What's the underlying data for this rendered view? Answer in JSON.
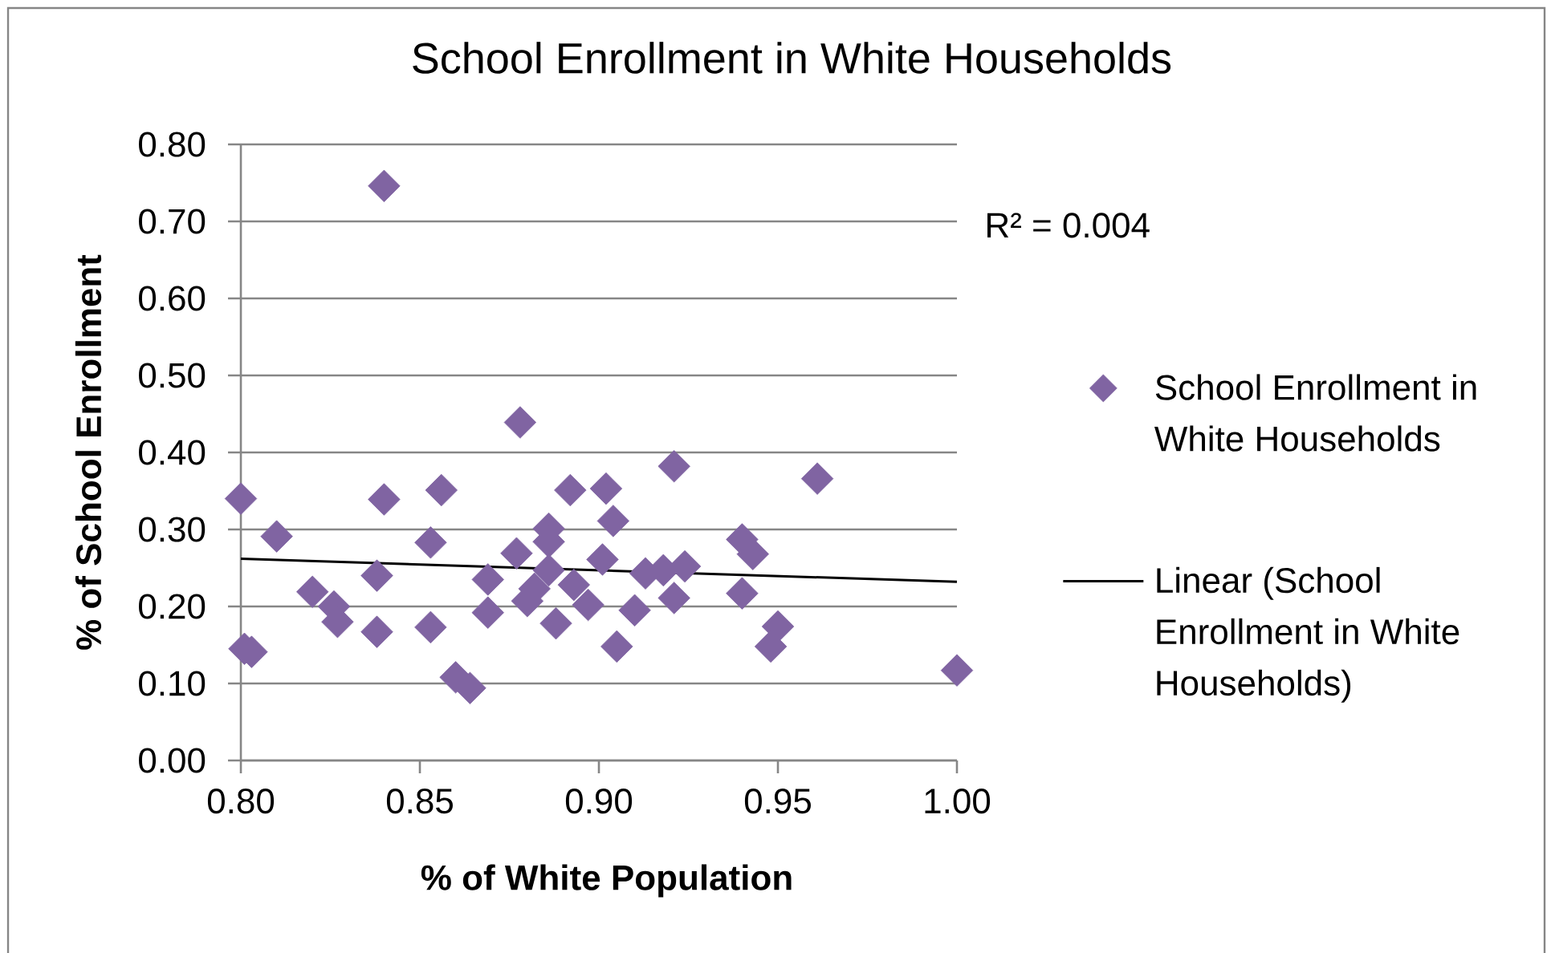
{
  "chart_data": {
    "type": "scatter",
    "title": "School Enrollment in White Households",
    "xlabel": "% of White Population",
    "ylabel": "% of School Enrollment",
    "annotations": [
      "R² = 0.004"
    ],
    "xlim": [
      0.8,
      1.0
    ],
    "xticks": [
      {
        "value": 0.8,
        "label": "0.80"
      },
      {
        "value": 0.85,
        "label": "0.85"
      },
      {
        "value": 0.9,
        "label": "0.90"
      },
      {
        "value": 0.95,
        "label": "0.95"
      },
      {
        "value": 1.0,
        "label": "1.00"
      }
    ],
    "ylim": [
      0,
      0.8
    ],
    "yticks": [
      {
        "value": 0,
        "label": "0.00"
      },
      {
        "value": 0.1,
        "label": "0.10"
      },
      {
        "value": 0.2,
        "label": "0.20"
      },
      {
        "value": 0.3,
        "label": "0.30"
      },
      {
        "value": 0.4,
        "label": "0.40"
      },
      {
        "value": 0.5,
        "label": "0.50"
      },
      {
        "value": 0.6,
        "label": "0.60"
      },
      {
        "value": 0.7,
        "label": "0.70"
      },
      {
        "value": 0.8,
        "label": "0.80"
      }
    ],
    "grid": "y",
    "legend": "right",
    "marker": "diamond",
    "series": [
      {
        "name": "School Enrollment in White Households",
        "color": "#8064a2",
        "x": [
          0.84,
          0.8,
          0.801,
          0.803,
          0.81,
          0.82,
          0.826,
          0.827,
          0.838,
          0.84,
          0.838,
          0.856,
          0.853,
          0.853,
          0.86,
          0.864,
          0.869,
          0.869,
          0.878,
          0.877,
          0.88,
          0.882,
          0.886,
          0.886,
          0.886,
          0.888,
          0.892,
          0.893,
          0.897,
          0.902,
          0.904,
          0.901,
          0.905,
          0.91,
          0.913,
          0.918,
          0.921,
          0.921,
          0.924,
          0.94,
          0.943,
          0.94,
          0.961,
          0.95,
          0.948,
          1.0
        ],
        "values": [
          0.746,
          0.34,
          0.145,
          0.141,
          0.291,
          0.219,
          0.2,
          0.18,
          0.24,
          0.339,
          0.167,
          0.351,
          0.283,
          0.173,
          0.108,
          0.094,
          0.235,
          0.192,
          0.439,
          0.269,
          0.207,
          0.223,
          0.301,
          0.284,
          0.247,
          0.178,
          0.351,
          0.228,
          0.202,
          0.353,
          0.311,
          0.261,
          0.148,
          0.195,
          0.243,
          0.247,
          0.382,
          0.211,
          0.252,
          0.287,
          0.268,
          0.217,
          0.366,
          0.174,
          0.148,
          0.117
        ]
      },
      {
        "name": "Linear (School Enrollment in White Households)",
        "type": "line",
        "color": "#000000",
        "marker": "none",
        "x": [
          0.8,
          1.0
        ],
        "values": [
          0.262,
          0.232
        ]
      }
    ]
  }
}
